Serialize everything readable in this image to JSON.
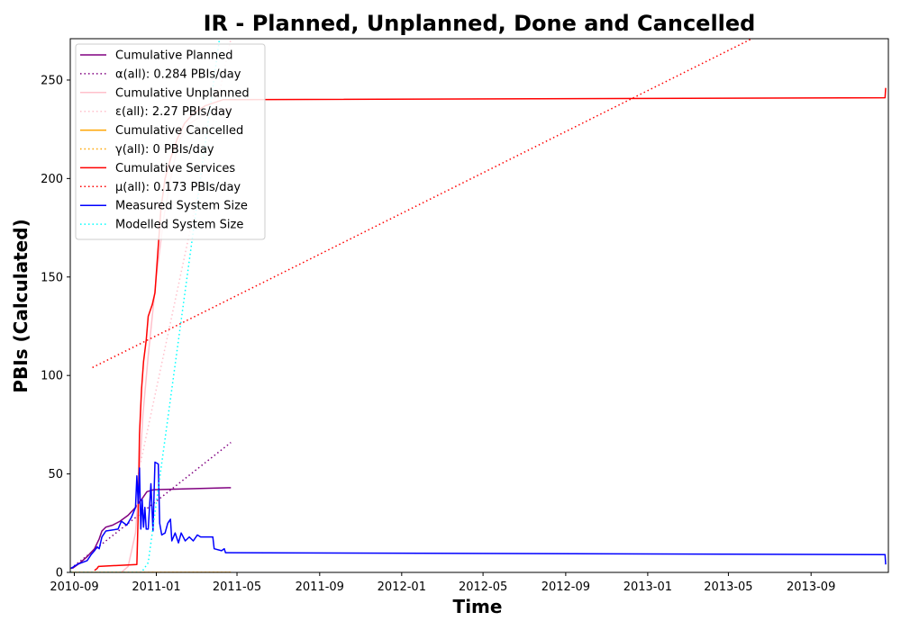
{
  "chart_data": {
    "type": "line",
    "title": "IR - Planned, Unplanned, Done  and Cancelled",
    "xlabel": "Time",
    "ylabel": "PBIs (Calculated)",
    "xlim": [
      "2010-08-26",
      "2013-12-25"
    ],
    "ylim": [
      0,
      271
    ],
    "x_ticks": [
      "2010-09",
      "2011-01",
      "2011-05",
      "2011-09",
      "2012-01",
      "2012-05",
      "2012-09",
      "2013-01",
      "2013-05",
      "2013-09"
    ],
    "y_ticks": [
      0,
      50,
      100,
      150,
      200,
      250
    ],
    "grid": false,
    "legend_position": "upper-left",
    "series": [
      {
        "name": "Cumulative Planned",
        "color": "#800080",
        "style": "solid",
        "points": [
          [
            "2010-08-29",
            2
          ],
          [
            "2010-09-10",
            5
          ],
          [
            "2010-09-20",
            8
          ],
          [
            "2010-10-01",
            12
          ],
          [
            "2010-10-08",
            17
          ],
          [
            "2010-10-12",
            21
          ],
          [
            "2010-10-18",
            23
          ],
          [
            "2010-10-28",
            24
          ],
          [
            "2010-11-08",
            26
          ],
          [
            "2010-11-20",
            29
          ],
          [
            "2010-12-01",
            33
          ],
          [
            "2010-12-10",
            37
          ],
          [
            "2010-12-18",
            41
          ],
          [
            "2010-12-28",
            42
          ],
          [
            "2011-04-22",
            43
          ]
        ]
      },
      {
        "name": "α(all): 0.284 PBIs/day",
        "color": "#800080",
        "style": "dotted",
        "points": [
          [
            "2010-08-27",
            2
          ],
          [
            "2011-04-22",
            66
          ]
        ]
      },
      {
        "name": "Cumulative Unplanned",
        "color": "#ffc0cb",
        "style": "solid",
        "points": [
          [
            "2010-11-10",
            0
          ],
          [
            "2010-11-20",
            3
          ],
          [
            "2010-12-01",
            20
          ],
          [
            "2010-12-05",
            40
          ],
          [
            "2010-12-12",
            80
          ],
          [
            "2010-12-20",
            110
          ],
          [
            "2011-01-01",
            150
          ],
          [
            "2011-01-12",
            180
          ],
          [
            "2011-01-25",
            205
          ],
          [
            "2011-02-05",
            220
          ],
          [
            "2011-02-20",
            228
          ],
          [
            "2011-03-10",
            232
          ],
          [
            "2011-04-22",
            236
          ]
        ]
      },
      {
        "name": "ε(all): 2.27 PBIs/day",
        "color": "#ffc0cb",
        "style": "dotted",
        "points": [
          [
            "2010-12-05",
            50
          ],
          [
            "2011-04-22",
            271
          ]
        ]
      },
      {
        "name": "Cumulative Cancelled",
        "color": "#ffa500",
        "style": "solid",
        "points": [
          [
            "2010-08-27",
            0
          ],
          [
            "2011-04-22",
            0
          ]
        ]
      },
      {
        "name": "γ(all): 0 PBIs/day",
        "color": "#ffa500",
        "style": "dotted",
        "points": [
          [
            "2010-08-27",
            0
          ],
          [
            "2011-04-22",
            0
          ]
        ]
      },
      {
        "name": "Cumulative Services",
        "color": "#ff0000",
        "style": "solid",
        "points": [
          [
            "2010-10-01",
            1
          ],
          [
            "2010-10-05",
            2
          ],
          [
            "2010-10-07",
            3
          ],
          [
            "2010-12-03",
            4
          ],
          [
            "2010-12-05",
            30
          ],
          [
            "2010-12-07",
            70
          ],
          [
            "2010-12-10",
            93
          ],
          [
            "2010-12-13",
            107
          ],
          [
            "2010-12-17",
            118
          ],
          [
            "2010-12-20",
            130
          ],
          [
            "2010-12-26",
            136
          ],
          [
            "2010-12-30",
            142
          ],
          [
            "2011-01-04",
            166
          ],
          [
            "2011-01-08",
            185
          ],
          [
            "2011-01-14",
            200
          ],
          [
            "2011-01-22",
            210
          ],
          [
            "2011-02-01",
            220
          ],
          [
            "2011-02-12",
            228
          ],
          [
            "2011-02-25",
            233
          ],
          [
            "2011-03-15",
            237
          ],
          [
            "2011-04-10",
            240
          ],
          [
            "2013-12-20",
            241
          ],
          [
            "2013-12-21",
            246
          ]
        ]
      },
      {
        "name": "μ(all): 0.173 PBIs/day",
        "color": "#ff0000",
        "style": "dotted",
        "points": [
          [
            "2010-09-28",
            104
          ],
          [
            "2013-06-05",
            271
          ]
        ]
      },
      {
        "name": "Measured System Size",
        "color": "#0000ff",
        "style": "solid",
        "points": [
          [
            "2010-08-27",
            2
          ],
          [
            "2010-09-05",
            4
          ],
          [
            "2010-09-20",
            6
          ],
          [
            "2010-09-26",
            9
          ],
          [
            "2010-10-01",
            11
          ],
          [
            "2010-10-05",
            13
          ],
          [
            "2010-10-08",
            12
          ],
          [
            "2010-10-12",
            18
          ],
          [
            "2010-10-18",
            21
          ],
          [
            "2010-11-05",
            22
          ],
          [
            "2010-11-10",
            26
          ],
          [
            "2010-11-18",
            24
          ],
          [
            "2010-11-25",
            28
          ],
          [
            "2010-12-01",
            33
          ],
          [
            "2010-12-03",
            49
          ],
          [
            "2010-12-05",
            35
          ],
          [
            "2010-12-07",
            53
          ],
          [
            "2010-12-09",
            22
          ],
          [
            "2010-12-11",
            37
          ],
          [
            "2010-12-13",
            23
          ],
          [
            "2010-12-15",
            33
          ],
          [
            "2010-12-17",
            22
          ],
          [
            "2010-12-20",
            22
          ],
          [
            "2010-12-24",
            45
          ],
          [
            "2010-12-27",
            21
          ],
          [
            "2010-12-30",
            56
          ],
          [
            "2011-01-04",
            55
          ],
          [
            "2011-01-06",
            25
          ],
          [
            "2011-01-09",
            19
          ],
          [
            "2011-01-14",
            20
          ],
          [
            "2011-01-18",
            25
          ],
          [
            "2011-01-22",
            27
          ],
          [
            "2011-01-24",
            16
          ],
          [
            "2011-01-29",
            20
          ],
          [
            "2011-02-03",
            15
          ],
          [
            "2011-02-07",
            20
          ],
          [
            "2011-02-13",
            16
          ],
          [
            "2011-02-19",
            18
          ],
          [
            "2011-02-25",
            16
          ],
          [
            "2011-03-03",
            19
          ],
          [
            "2011-03-08",
            18
          ],
          [
            "2011-03-26",
            18
          ],
          [
            "2011-03-28",
            12
          ],
          [
            "2011-04-08",
            11
          ],
          [
            "2011-04-12",
            12
          ],
          [
            "2011-04-14",
            10
          ],
          [
            "2013-12-20",
            9
          ],
          [
            "2013-12-21",
            4
          ]
        ]
      },
      {
        "name": "Modelled System Size",
        "color": "#00ffff",
        "style": "dotted",
        "points": [
          [
            "2010-08-27",
            0
          ],
          [
            "2010-12-10",
            0
          ],
          [
            "2010-12-20",
            5
          ],
          [
            "2011-04-05",
            271
          ]
        ]
      }
    ]
  }
}
